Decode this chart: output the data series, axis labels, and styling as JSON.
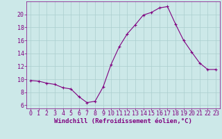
{
  "x": [
    0,
    1,
    2,
    3,
    4,
    5,
    6,
    7,
    8,
    9,
    10,
    11,
    12,
    13,
    14,
    15,
    16,
    17,
    18,
    19,
    20,
    21,
    22,
    23
  ],
  "y": [
    9.8,
    9.7,
    9.4,
    9.2,
    8.7,
    8.5,
    7.3,
    6.4,
    6.6,
    8.8,
    12.3,
    15.0,
    17.0,
    18.4,
    19.9,
    20.3,
    21.0,
    21.2,
    18.5,
    16.0,
    14.2,
    12.5,
    11.5,
    11.5
  ],
  "line_color": "#800080",
  "marker": "+",
  "bg_color": "#cce8e8",
  "grid_color": "#aacece",
  "tick_color": "#800080",
  "label_color": "#800080",
  "xlabel": "Windchill (Refroidissement éolien,°C)",
  "xlim": [
    -0.5,
    23.5
  ],
  "ylim": [
    5.5,
    22
  ],
  "yticks": [
    6,
    8,
    10,
    12,
    14,
    16,
    18,
    20
  ],
  "xticks": [
    0,
    1,
    2,
    3,
    4,
    5,
    6,
    7,
    8,
    9,
    10,
    11,
    12,
    13,
    14,
    15,
    16,
    17,
    18,
    19,
    20,
    21,
    22,
    23
  ],
  "tick_fontsize": 6,
  "xlabel_fontsize": 6.5
}
